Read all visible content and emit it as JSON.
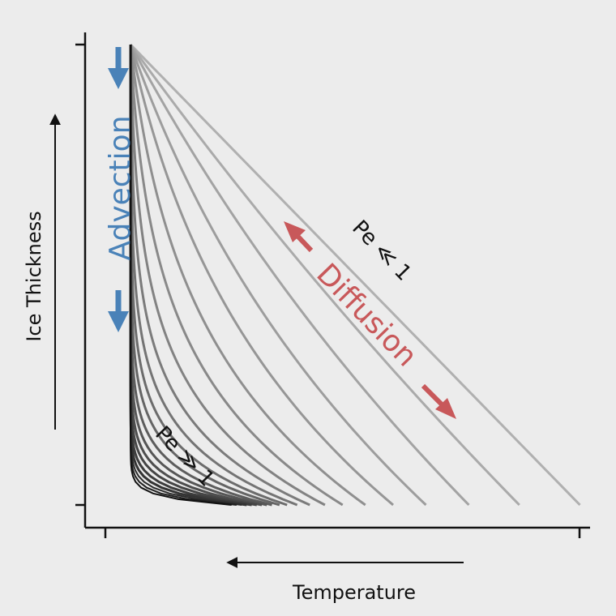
{
  "colors": {
    "background": "#ececec",
    "axis": "#111111",
    "curve_dark": "#111111",
    "curve_light": "#b0b0b0",
    "advection": "#4a82b8",
    "diffusion": "#c8585a"
  },
  "chart_data": {
    "type": "line",
    "title": "",
    "xlabel": "Temperature",
    "ylabel": "Ice Thickness",
    "xlim": [
      0,
      1
    ],
    "ylim": [
      0,
      1
    ],
    "grid": false,
    "legend": "none",
    "x_direction_arrow": "left",
    "y_direction_arrow": "up",
    "profile_top": [
      0.09,
      1.0
    ],
    "series_bottom_x": [
      0.29,
      0.3,
      0.31,
      0.32,
      0.33,
      0.34,
      0.35,
      0.36,
      0.37,
      0.385,
      0.4,
      0.42,
      0.445,
      0.475,
      0.51,
      0.555,
      0.61,
      0.675,
      0.76,
      0.86,
      0.98
    ],
    "series_shape_k": [
      60,
      50,
      42,
      35,
      29,
      24,
      20,
      16.5,
      13.5,
      11,
      9,
      7.3,
      5.8,
      4.5,
      3.4,
      2.5,
      1.7,
      1.1,
      0.6,
      0.3,
      0.05
    ],
    "annotations": {
      "advection": "Advection",
      "diffusion": "Diffusion",
      "pe_low": "Pe ≪ 1",
      "pe_high": "Pe ≫ 1"
    }
  }
}
